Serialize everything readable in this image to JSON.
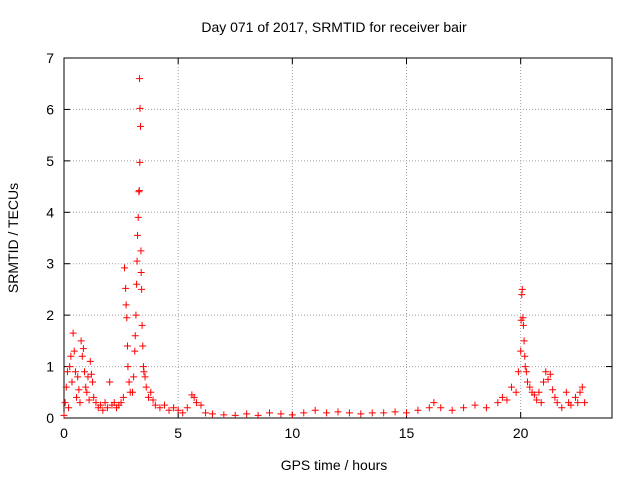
{
  "chart_data": {
    "type": "scatter",
    "title": "Day 071 of 2017, SRMTID for receiver bair",
    "xlabel": "GPS time / hours",
    "ylabel": "SRMTID / TECUs",
    "xlim": [
      0,
      24
    ],
    "ylim": [
      0,
      7
    ],
    "xticks": [
      0,
      5,
      10,
      15,
      20
    ],
    "yticks": [
      0,
      1,
      2,
      3,
      4,
      5,
      6,
      7
    ],
    "xtick_labels": [
      "0",
      "5",
      "10",
      "15",
      "20"
    ],
    "ytick_labels": [
      "0",
      "1",
      "2",
      "3",
      "4",
      "5",
      "6",
      "7"
    ],
    "grid": true,
    "marker": "+",
    "color": "#ff0000",
    "series": [
      {
        "name": "SRMTID",
        "points": [
          [
            0.0,
            0.05
          ],
          [
            0.05,
            0.3
          ],
          [
            0.1,
            0.6
          ],
          [
            0.15,
            0.9
          ],
          [
            0.2,
            0.2
          ],
          [
            0.25,
            1.0
          ],
          [
            0.3,
            1.2
          ],
          [
            0.35,
            0.7
          ],
          [
            0.4,
            1.65
          ],
          [
            0.45,
            1.3
          ],
          [
            0.5,
            0.9
          ],
          [
            0.55,
            0.4
          ],
          [
            0.6,
            0.8
          ],
          [
            0.65,
            0.55
          ],
          [
            0.7,
            0.3
          ],
          [
            0.75,
            1.5
          ],
          [
            0.8,
            1.2
          ],
          [
            0.85,
            1.35
          ],
          [
            0.9,
            0.9
          ],
          [
            0.95,
            0.6
          ],
          [
            1.0,
            0.5
          ],
          [
            1.05,
            0.8
          ],
          [
            1.1,
            0.35
          ],
          [
            1.15,
            1.1
          ],
          [
            1.2,
            0.85
          ],
          [
            1.25,
            0.7
          ],
          [
            1.3,
            0.4
          ],
          [
            1.4,
            0.3
          ],
          [
            1.5,
            0.2
          ],
          [
            1.6,
            0.25
          ],
          [
            1.7,
            0.15
          ],
          [
            1.8,
            0.3
          ],
          [
            1.9,
            0.2
          ],
          [
            2.0,
            0.7
          ],
          [
            2.1,
            0.25
          ],
          [
            2.2,
            0.3
          ],
          [
            2.3,
            0.2
          ],
          [
            2.4,
            0.25
          ],
          [
            2.5,
            0.3
          ],
          [
            2.6,
            0.4
          ],
          [
            2.65,
            2.92
          ],
          [
            2.7,
            2.52
          ],
          [
            2.72,
            2.2
          ],
          [
            2.75,
            1.95
          ],
          [
            2.78,
            1.4
          ],
          [
            2.8,
            1.0
          ],
          [
            2.85,
            0.7
          ],
          [
            2.9,
            0.5
          ],
          [
            3.0,
            0.5
          ],
          [
            3.05,
            0.8
          ],
          [
            3.1,
            1.3
          ],
          [
            3.12,
            1.6
          ],
          [
            3.15,
            2.0
          ],
          [
            3.18,
            2.6
          ],
          [
            3.2,
            3.05
          ],
          [
            3.22,
            3.55
          ],
          [
            3.25,
            3.9
          ],
          [
            3.28,
            4.4
          ],
          [
            3.3,
            4.42
          ],
          [
            3.32,
            4.97
          ],
          [
            3.35,
            5.67
          ],
          [
            3.33,
            6.02
          ],
          [
            3.31,
            6.6
          ],
          [
            3.37,
            3.25
          ],
          [
            3.38,
            2.83
          ],
          [
            3.4,
            2.5
          ],
          [
            3.42,
            1.8
          ],
          [
            3.45,
            1.4
          ],
          [
            3.48,
            1.0
          ],
          [
            3.5,
            0.9
          ],
          [
            3.55,
            0.8
          ],
          [
            3.6,
            0.6
          ],
          [
            3.7,
            0.4
          ],
          [
            3.8,
            0.5
          ],
          [
            3.9,
            0.35
          ],
          [
            4.0,
            0.25
          ],
          [
            4.2,
            0.2
          ],
          [
            4.4,
            0.25
          ],
          [
            4.6,
            0.15
          ],
          [
            4.8,
            0.2
          ],
          [
            5.0,
            0.15
          ],
          [
            5.2,
            0.1
          ],
          [
            5.4,
            0.2
          ],
          [
            5.6,
            0.45
          ],
          [
            5.7,
            0.4
          ],
          [
            5.8,
            0.3
          ],
          [
            6.0,
            0.25
          ],
          [
            6.2,
            0.1
          ],
          [
            6.5,
            0.08
          ],
          [
            7.0,
            0.06
          ],
          [
            7.5,
            0.05
          ],
          [
            8.0,
            0.08
          ],
          [
            8.5,
            0.05
          ],
          [
            9.0,
            0.1
          ],
          [
            9.5,
            0.08
          ],
          [
            10.0,
            0.06
          ],
          [
            10.5,
            0.1
          ],
          [
            11.0,
            0.15
          ],
          [
            11.5,
            0.1
          ],
          [
            12.0,
            0.12
          ],
          [
            12.5,
            0.1
          ],
          [
            13.0,
            0.08
          ],
          [
            13.5,
            0.1
          ],
          [
            14.0,
            0.1
          ],
          [
            14.5,
            0.12
          ],
          [
            15.0,
            0.1
          ],
          [
            15.5,
            0.15
          ],
          [
            16.0,
            0.2
          ],
          [
            16.2,
            0.3
          ],
          [
            16.5,
            0.2
          ],
          [
            17.0,
            0.15
          ],
          [
            17.5,
            0.2
          ],
          [
            18.0,
            0.25
          ],
          [
            18.5,
            0.2
          ],
          [
            19.0,
            0.3
          ],
          [
            19.2,
            0.4
          ],
          [
            19.4,
            0.35
          ],
          [
            19.6,
            0.6
          ],
          [
            19.8,
            0.5
          ],
          [
            19.9,
            0.9
          ],
          [
            20.0,
            1.3
          ],
          [
            20.02,
            1.9
          ],
          [
            20.05,
            2.4
          ],
          [
            20.07,
            2.5
          ],
          [
            20.1,
            1.95
          ],
          [
            20.12,
            1.8
          ],
          [
            20.15,
            1.5
          ],
          [
            20.18,
            1.2
          ],
          [
            20.2,
            1.0
          ],
          [
            20.25,
            0.9
          ],
          [
            20.3,
            0.7
          ],
          [
            20.4,
            0.6
          ],
          [
            20.5,
            0.5
          ],
          [
            20.6,
            0.45
          ],
          [
            20.7,
            0.35
          ],
          [
            20.8,
            0.5
          ],
          [
            20.9,
            0.3
          ],
          [
            21.0,
            0.7
          ],
          [
            21.1,
            0.9
          ],
          [
            21.2,
            0.75
          ],
          [
            21.3,
            0.85
          ],
          [
            21.4,
            0.55
          ],
          [
            21.5,
            0.4
          ],
          [
            21.6,
            0.3
          ],
          [
            21.8,
            0.2
          ],
          [
            22.0,
            0.5
          ],
          [
            22.1,
            0.3
          ],
          [
            22.2,
            0.25
          ],
          [
            22.4,
            0.4
          ],
          [
            22.5,
            0.3
          ],
          [
            22.6,
            0.5
          ],
          [
            22.7,
            0.6
          ],
          [
            22.8,
            0.3
          ]
        ]
      }
    ]
  }
}
